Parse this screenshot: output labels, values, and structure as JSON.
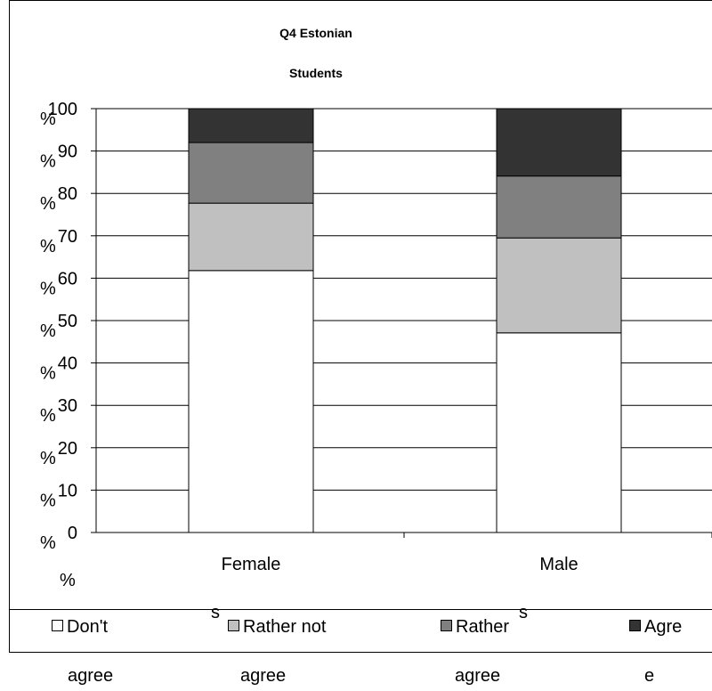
{
  "chart_data": {
    "type": "bar",
    "stacked": true,
    "title_lines": [
      "Q4 Estonian",
      "Students"
    ],
    "categories": [
      "Female",
      "Male"
    ],
    "category_suffix": "s",
    "ylim": [
      0,
      100
    ],
    "yticks": [
      0,
      10,
      20,
      30,
      40,
      50,
      60,
      70,
      80,
      90,
      100
    ],
    "ytick_suffix": "%",
    "grid": true,
    "legend_position": "bottom",
    "series": [
      {
        "name_line1": "Don't",
        "name_line2": "agree",
        "color": "#ffffff",
        "values": [
          61.8,
          47.1
        ]
      },
      {
        "name_line1": "Rather not",
        "name_line2": "agree",
        "color": "#c0c0c0",
        "values": [
          15.9,
          22.4
        ]
      },
      {
        "name_line1": "Rather",
        "name_line2": "agree",
        "color": "#808080",
        "values": [
          14.3,
          14.6
        ]
      },
      {
        "name_line1": "Agre",
        "name_line2": "e",
        "color": "#333333",
        "values": [
          8.0,
          15.9
        ]
      }
    ]
  }
}
